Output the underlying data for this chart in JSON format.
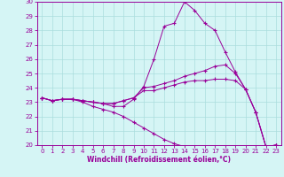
{
  "xlabel": "Windchill (Refroidissement éolien,°C)",
  "x": [
    0,
    1,
    2,
    3,
    4,
    5,
    6,
    7,
    8,
    9,
    10,
    11,
    12,
    13,
    14,
    15,
    16,
    17,
    18,
    19,
    20,
    21,
    22,
    23
  ],
  "line1": [
    23.3,
    23.1,
    23.2,
    23.2,
    23.1,
    23.0,
    22.9,
    22.7,
    22.7,
    23.2,
    24.1,
    26.0,
    28.3,
    28.5,
    30.0,
    29.4,
    28.5,
    28.0,
    26.5,
    25.1,
    23.9,
    22.3,
    19.9,
    20.0
  ],
  "line2": [
    23.3,
    23.1,
    23.2,
    23.2,
    23.1,
    23.0,
    22.9,
    22.9,
    23.1,
    23.3,
    24.0,
    24.1,
    24.3,
    24.5,
    24.8,
    25.0,
    25.2,
    25.5,
    25.6,
    25.0,
    23.9,
    22.3,
    19.9,
    20.0
  ],
  "line3": [
    23.3,
    23.1,
    23.2,
    23.2,
    23.1,
    23.0,
    22.9,
    22.9,
    23.1,
    23.3,
    23.8,
    23.8,
    24.0,
    24.2,
    24.4,
    24.5,
    24.5,
    24.6,
    24.6,
    24.5,
    23.9,
    22.3,
    19.9,
    20.0
  ],
  "line4": [
    23.3,
    23.1,
    23.2,
    23.2,
    23.0,
    22.7,
    22.5,
    22.3,
    22.0,
    21.6,
    21.2,
    20.8,
    20.4,
    20.1,
    19.9,
    19.7,
    19.5,
    19.4,
    19.3,
    19.4,
    19.6,
    19.9,
    19.9,
    20.0
  ],
  "line_color": "#990099",
  "bg_color": "#d5f5f5",
  "grid_color": "#aadddd",
  "ylim": [
    20,
    30
  ],
  "yticks": [
    20,
    21,
    22,
    23,
    24,
    25,
    26,
    27,
    28,
    29,
    30
  ],
  "xticks": [
    0,
    1,
    2,
    3,
    4,
    5,
    6,
    7,
    8,
    9,
    10,
    11,
    12,
    13,
    14,
    15,
    16,
    17,
    18,
    19,
    20,
    21,
    22,
    23
  ],
  "tick_fontsize": 5,
  "xlabel_fontsize": 5.5
}
